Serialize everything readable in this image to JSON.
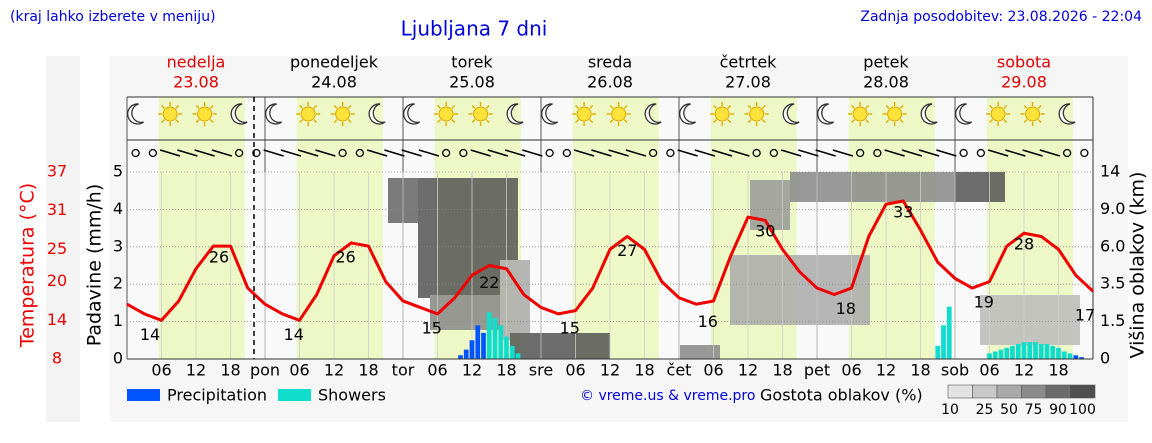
{
  "header": {
    "note": "(kraj lahko izberete v meniju)",
    "title": "Ljubljana 7 dni",
    "updated": "Zadnja posodobitev: 23.08.2026 - 22:04"
  },
  "days": [
    {
      "name": "nedelja",
      "date": "23.08",
      "color": "#e00000"
    },
    {
      "name": "ponedeljek",
      "date": "24.08",
      "color": "#000000"
    },
    {
      "name": "torek",
      "date": "25.08",
      "color": "#000000"
    },
    {
      "name": "sreda",
      "date": "26.08",
      "color": "#000000"
    },
    {
      "name": "četrtek",
      "date": "27.08",
      "color": "#000000"
    },
    {
      "name": "petek",
      "date": "28.08",
      "color": "#000000"
    },
    {
      "name": "sobota",
      "date": "29.08",
      "color": "#e00000"
    }
  ],
  "chart_data": [
    {
      "type": "line",
      "ylabel": "Temperatura (°C)",
      "color": "#ee0000",
      "ylim": [
        8,
        37
      ],
      "yticks": [
        8,
        14,
        20,
        25,
        31,
        37
      ],
      "x": [
        0,
        3,
        6,
        9,
        12,
        15,
        18,
        21,
        24,
        27,
        30,
        33,
        36,
        39,
        42,
        45,
        48,
        51,
        54,
        57,
        60,
        63,
        66,
        69,
        72,
        75,
        78,
        81,
        84,
        87,
        90,
        93,
        96,
        99,
        102,
        105,
        108,
        111,
        114,
        117,
        120,
        123,
        126,
        129,
        132,
        135,
        138,
        141,
        144,
        147,
        150,
        153,
        156,
        159,
        162,
        165,
        168
      ],
      "values": [
        16.5,
        15,
        14,
        17,
        22,
        25.5,
        25.5,
        19,
        16.5,
        15,
        14,
        18,
        24,
        26,
        25.5,
        20,
        17,
        16,
        15,
        17.5,
        21,
        22.5,
        22,
        18,
        16,
        15,
        15.5,
        19,
        25,
        27,
        25,
        20,
        17.5,
        16.5,
        17,
        24,
        30,
        29.5,
        25,
        21.5,
        19,
        18,
        19,
        27,
        32,
        32.5,
        28,
        23,
        20.5,
        19,
        20,
        25.5,
        27.5,
        27,
        25,
        21,
        18.5
      ],
      "annotations": [
        {
          "x": 4,
          "value": 14
        },
        {
          "x": 16,
          "value": 26
        },
        {
          "x": 29,
          "value": 14
        },
        {
          "x": 38,
          "value": 26
        },
        {
          "x": 53,
          "value": 15
        },
        {
          "x": 63,
          "value": 22
        },
        {
          "x": 77,
          "value": 15
        },
        {
          "x": 87,
          "value": 27
        },
        {
          "x": 101,
          "value": 16
        },
        {
          "x": 111,
          "value": 30
        },
        {
          "x": 125,
          "value": 18
        },
        {
          "x": 135,
          "value": 33
        },
        {
          "x": 149,
          "value": 19
        },
        {
          "x": 156,
          "value": 28
        },
        {
          "x": 168,
          "value": 17
        }
      ]
    },
    {
      "type": "bar",
      "ylabel": "Padavine (mm/h)",
      "ylim": [
        0,
        5
      ],
      "yticks": [
        0,
        1,
        2,
        3,
        4,
        5
      ],
      "y2label": "Višina oblakov (km)",
      "y2lim": [
        0,
        14
      ],
      "y2ticks": [
        0,
        1.5,
        3.5,
        {
          "value": 6,
          "label": "6.0"
        },
        {
          "value": 9,
          "label": "9.0"
        },
        14
      ],
      "xlim": [
        0,
        168
      ],
      "xticks": [
        {
          "value": 6,
          "label": "06"
        },
        {
          "value": 12,
          "label": "12"
        },
        {
          "value": 18,
          "label": "18"
        },
        {
          "value": 24,
          "label": "pon"
        },
        {
          "value": 30,
          "label": "06"
        },
        {
          "value": 36,
          "label": "12"
        },
        {
          "value": 42,
          "label": "18"
        },
        {
          "value": 48,
          "label": "tor"
        },
        {
          "value": 54,
          "label": "06"
        },
        {
          "value": 60,
          "label": "12"
        },
        {
          "value": 66,
          "label": "18"
        },
        {
          "value": 72,
          "label": "sre"
        },
        {
          "value": 78,
          "label": "06"
        },
        {
          "value": 84,
          "label": "12"
        },
        {
          "value": 90,
          "label": "18"
        },
        {
          "value": 96,
          "label": "čet"
        },
        {
          "value": 102,
          "label": "06"
        },
        {
          "value": 108,
          "label": "12"
        },
        {
          "value": 114,
          "label": "18"
        },
        {
          "value": 120,
          "label": "pet"
        },
        {
          "value": 126,
          "label": "06"
        },
        {
          "value": 132,
          "label": "12"
        },
        {
          "value": 138,
          "label": "18"
        },
        {
          "value": 144,
          "label": "sob"
        },
        {
          "value": 150,
          "label": "06"
        },
        {
          "value": 156,
          "label": "12"
        },
        {
          "value": 162,
          "label": "18"
        }
      ],
      "series": [
        {
          "name": "Precipitation",
          "color": "#0055ff",
          "x": [
            58,
            59,
            60,
            61,
            62,
            165,
            166
          ],
          "values": [
            0.1,
            0.25,
            0.5,
            0.9,
            0.7,
            0.1,
            0.05
          ]
        },
        {
          "name": "Showers",
          "color": "#11ddcc",
          "x": [
            63,
            64,
            65,
            66,
            67,
            68,
            141,
            142,
            143,
            150,
            151,
            152,
            153,
            154,
            155,
            156,
            157,
            158,
            159,
            160,
            161,
            162,
            163,
            164
          ],
          "values": [
            1.25,
            1.1,
            0.9,
            0.6,
            0.35,
            0.15,
            0.35,
            0.9,
            1.4,
            0.15,
            0.2,
            0.25,
            0.3,
            0.35,
            0.4,
            0.45,
            0.45,
            0.45,
            0.4,
            0.4,
            0.35,
            0.3,
            0.2,
            0.15
          ]
        }
      ]
    }
  ],
  "footer": {
    "credit": "© vreme.us & vreme.pro",
    "cloud_legend": {
      "title": "Gostota oblakov (%)",
      "levels": [
        10,
        25,
        50,
        75,
        90,
        100
      ]
    }
  }
}
